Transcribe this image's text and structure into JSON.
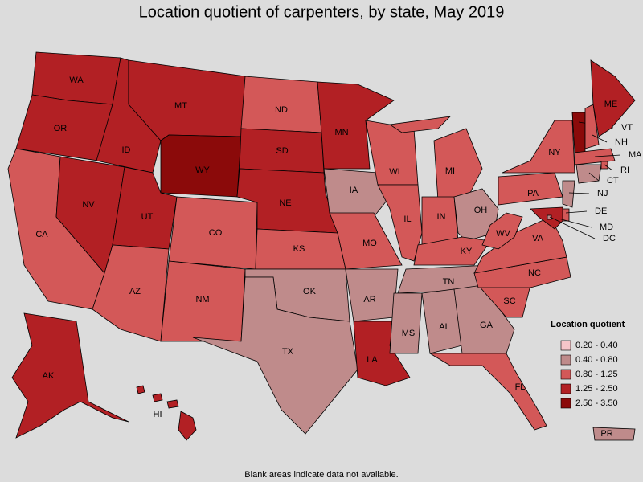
{
  "title": "Location quotient of carpenters, by state, May 2019",
  "legend": {
    "title": "Location quotient",
    "items": [
      {
        "label": "0.20 - 0.40",
        "color": "#f6c6c9"
      },
      {
        "label": "0.40 - 0.80",
        "color": "#bf8b8b"
      },
      {
        "label": "0.80 - 1.25",
        "color": "#d35858"
      },
      {
        "label": "1.25 - 2.50",
        "color": "#b22024"
      },
      {
        "label": "2.50 - 3.50",
        "color": "#8b0a0a"
      }
    ]
  },
  "states": [
    {
      "abbr": "WA",
      "bin": 3
    },
    {
      "abbr": "OR",
      "bin": 3
    },
    {
      "abbr": "CA",
      "bin": 2
    },
    {
      "abbr": "NV",
      "bin": 3
    },
    {
      "abbr": "ID",
      "bin": 3
    },
    {
      "abbr": "MT",
      "bin": 3
    },
    {
      "abbr": "WY",
      "bin": 4
    },
    {
      "abbr": "UT",
      "bin": 3
    },
    {
      "abbr": "AZ",
      "bin": 2
    },
    {
      "abbr": "CO",
      "bin": 2
    },
    {
      "abbr": "NM",
      "bin": 2
    },
    {
      "abbr": "ND",
      "bin": 2
    },
    {
      "abbr": "SD",
      "bin": 3
    },
    {
      "abbr": "NE",
      "bin": 3
    },
    {
      "abbr": "KS",
      "bin": 2
    },
    {
      "abbr": "OK",
      "bin": 1
    },
    {
      "abbr": "TX",
      "bin": 1
    },
    {
      "abbr": "MN",
      "bin": 3
    },
    {
      "abbr": "IA",
      "bin": 1
    },
    {
      "abbr": "MO",
      "bin": 2
    },
    {
      "abbr": "AR",
      "bin": 1
    },
    {
      "abbr": "LA",
      "bin": 3
    },
    {
      "abbr": "WI",
      "bin": 2
    },
    {
      "abbr": "IL",
      "bin": 2
    },
    {
      "abbr": "MI",
      "bin": 2
    },
    {
      "abbr": "IN",
      "bin": 2
    },
    {
      "abbr": "OH",
      "bin": 1
    },
    {
      "abbr": "KY",
      "bin": 2
    },
    {
      "abbr": "TN",
      "bin": 1
    },
    {
      "abbr": "MS",
      "bin": 1
    },
    {
      "abbr": "AL",
      "bin": 1
    },
    {
      "abbr": "GA",
      "bin": 1
    },
    {
      "abbr": "FL",
      "bin": 2
    },
    {
      "abbr": "SC",
      "bin": 2
    },
    {
      "abbr": "NC",
      "bin": 2
    },
    {
      "abbr": "VA",
      "bin": 2
    },
    {
      "abbr": "WV",
      "bin": 2
    },
    {
      "abbr": "PA",
      "bin": 2
    },
    {
      "abbr": "NY",
      "bin": 2
    },
    {
      "abbr": "NJ",
      "bin": 1
    },
    {
      "abbr": "DE",
      "bin": 2
    },
    {
      "abbr": "MD",
      "bin": 3
    },
    {
      "abbr": "DC",
      "bin": 1
    },
    {
      "abbr": "VT",
      "bin": 4
    },
    {
      "abbr": "NH",
      "bin": 2
    },
    {
      "abbr": "ME",
      "bin": 3
    },
    {
      "abbr": "MA",
      "bin": 2
    },
    {
      "abbr": "RI",
      "bin": 2
    },
    {
      "abbr": "CT",
      "bin": 1
    },
    {
      "abbr": "AK",
      "bin": 3
    },
    {
      "abbr": "HI",
      "bin": 3
    },
    {
      "abbr": "PR",
      "bin": 1
    }
  ],
  "footnote": "Blank areas indicate data not available."
}
